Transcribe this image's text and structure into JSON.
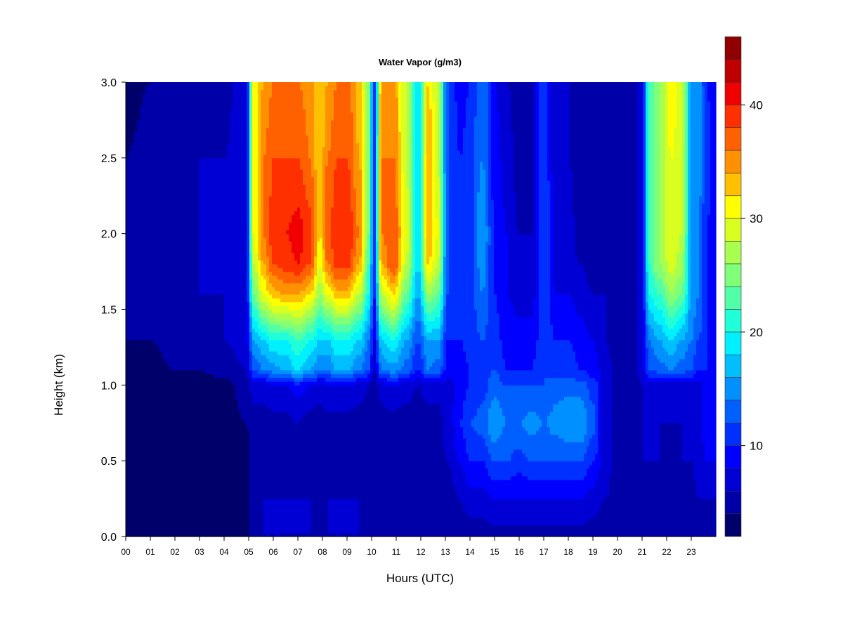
{
  "chart_data": {
    "type": "heatmap",
    "title": "Water Vapor (g/m3)",
    "xlabel": "Hours (UTC)",
    "ylabel": "Height (km)",
    "xlim": [
      0,
      24
    ],
    "ylim": [
      0.0,
      3.0
    ],
    "x_ticks": [
      "00",
      "01",
      "02",
      "03",
      "04",
      "05",
      "06",
      "07",
      "08",
      "09",
      "10",
      "11",
      "12",
      "13",
      "14",
      "15",
      "16",
      "17",
      "18",
      "19",
      "20",
      "21",
      "22",
      "23"
    ],
    "y_ticks": [
      "0.0",
      "0.5",
      "1.0",
      "1.5",
      "2.0",
      "2.5",
      "3.0"
    ],
    "colorbar": {
      "min": 2,
      "max": 42,
      "step": 2,
      "ticks": [
        "10",
        "20",
        "30",
        "40"
      ],
      "tick_values": [
        10,
        20,
        30,
        40
      ],
      "colors": [
        "#00006B",
        "#0000A8",
        "#0000D4",
        "#0000FF",
        "#0030FF",
        "#0060FF",
        "#0090FF",
        "#00BFFF",
        "#00F0FF",
        "#20FFD8",
        "#50FFA8",
        "#80FF78",
        "#A8FF50",
        "#D8FF20",
        "#FFFF00",
        "#FFC000",
        "#FF9000",
        "#FF6000",
        "#FF3000",
        "#F00000",
        "#C00000",
        "#900000"
      ]
    },
    "height_km": [
      0.0,
      0.25,
      0.5,
      0.75,
      1.0,
      1.1,
      1.3,
      1.6,
      1.8,
      2.0,
      2.5,
      3.0
    ],
    "columns": [
      {
        "hour": 0.0,
        "values": [
          2,
          2,
          2,
          2,
          2,
          3,
          4,
          4,
          4,
          4,
          4,
          3
        ]
      },
      {
        "hour": 1.0,
        "values": [
          2,
          2,
          2,
          2,
          3,
          3,
          4,
          5,
          5,
          5,
          5,
          4
        ]
      },
      {
        "hour": 2.0,
        "values": [
          2,
          2,
          2,
          2,
          3,
          4,
          5,
          5,
          5,
          5,
          5,
          4
        ]
      },
      {
        "hour": 3.0,
        "values": [
          2,
          2,
          2,
          3,
          3,
          4,
          5,
          6,
          6,
          6,
          6,
          5
        ]
      },
      {
        "hour": 4.0,
        "values": [
          2,
          2,
          3,
          3,
          3,
          5,
          6,
          6,
          6,
          6,
          6,
          5
        ]
      },
      {
        "hour": 4.9,
        "values": [
          3,
          3,
          3,
          4,
          5,
          6,
          7,
          8,
          8,
          8,
          8,
          8
        ]
      },
      {
        "hour": 5.2,
        "values": [
          5,
          6,
          5,
          5,
          7,
          12,
          16,
          24,
          28,
          30,
          30,
          30
        ]
      },
      {
        "hour": 5.6,
        "values": [
          6,
          6,
          5,
          5,
          7,
          14,
          18,
          30,
          34,
          36,
          36,
          34
        ]
      },
      {
        "hour": 6.0,
        "values": [
          6,
          6,
          5,
          5,
          8,
          15,
          20,
          33,
          38,
          39,
          38,
          36
        ]
      },
      {
        "hour": 6.5,
        "values": [
          6,
          6,
          5,
          5,
          8,
          16,
          20,
          34,
          39,
          40,
          38,
          36
        ]
      },
      {
        "hour": 7.0,
        "values": [
          6,
          6,
          5,
          6,
          9,
          18,
          22,
          34,
          40,
          41,
          38,
          36
        ]
      },
      {
        "hour": 7.5,
        "values": [
          6,
          6,
          5,
          5,
          8,
          16,
          20,
          32,
          38,
          39,
          36,
          35
        ]
      },
      {
        "hour": 7.9,
        "values": [
          5,
          6,
          5,
          5,
          7,
          14,
          18,
          26,
          30,
          32,
          32,
          32
        ]
      },
      {
        "hour": 8.2,
        "values": [
          6,
          6,
          5,
          5,
          8,
          14,
          18,
          30,
          36,
          37,
          36,
          34
        ]
      },
      {
        "hour": 8.6,
        "values": [
          6,
          6,
          5,
          5,
          8,
          16,
          20,
          33,
          39,
          40,
          38,
          36
        ]
      },
      {
        "hour": 9.0,
        "values": [
          6,
          6,
          5,
          5,
          8,
          16,
          20,
          33,
          39,
          40,
          38,
          37
        ]
      },
      {
        "hour": 9.5,
        "values": [
          6,
          6,
          5,
          5,
          7,
          14,
          18,
          28,
          34,
          36,
          34,
          33
        ]
      },
      {
        "hour": 9.9,
        "values": [
          5,
          5,
          5,
          5,
          6,
          12,
          14,
          20,
          22,
          24,
          24,
          24
        ]
      },
      {
        "hour": 10.1,
        "values": [
          4,
          4,
          4,
          4,
          5,
          6,
          8,
          10,
          10,
          10,
          10,
          10
        ]
      },
      {
        "hour": 10.4,
        "values": [
          5,
          5,
          5,
          5,
          7,
          14,
          18,
          28,
          34,
          36,
          36,
          34
        ]
      },
      {
        "hour": 10.9,
        "values": [
          5,
          5,
          5,
          5,
          8,
          15,
          20,
          32,
          38,
          38,
          36,
          35
        ]
      },
      {
        "hour": 11.4,
        "values": [
          5,
          5,
          5,
          5,
          7,
          13,
          16,
          24,
          28,
          30,
          28,
          28
        ]
      },
      {
        "hour": 11.9,
        "values": [
          5,
          5,
          5,
          5,
          6,
          10,
          12,
          16,
          18,
          18,
          18,
          18
        ]
      },
      {
        "hour": 12.3,
        "values": [
          5,
          5,
          5,
          5,
          7,
          14,
          16,
          26,
          32,
          34,
          34,
          32
        ]
      },
      {
        "hour": 12.7,
        "values": [
          5,
          5,
          5,
          5,
          7,
          13,
          16,
          24,
          28,
          30,
          28,
          28
        ]
      },
      {
        "hour": 13.1,
        "values": [
          5,
          5,
          6,
          7,
          7,
          9,
          10,
          12,
          12,
          12,
          12,
          12
        ]
      },
      {
        "hour": 13.6,
        "values": [
          5,
          6,
          8,
          10,
          9,
          9,
          10,
          10,
          10,
          10,
          10,
          9
        ]
      },
      {
        "hour": 14.0,
        "values": [
          5,
          7,
          10,
          12,
          10,
          10,
          11,
          11,
          11,
          11,
          11,
          10
        ]
      },
      {
        "hour": 14.5,
        "values": [
          5,
          7,
          10,
          13,
          11,
          11,
          12,
          14,
          15,
          16,
          14,
          14
        ]
      },
      {
        "hour": 15.0,
        "values": [
          5,
          8,
          12,
          16,
          13,
          12,
          11,
          10,
          10,
          10,
          9,
          8
        ]
      },
      {
        "hour": 15.5,
        "values": [
          5,
          8,
          12,
          14,
          12,
          10,
          9,
          8,
          8,
          8,
          7,
          6
        ]
      },
      {
        "hour": 16.0,
        "values": [
          5,
          8,
          11,
          14,
          12,
          10,
          9,
          7,
          7,
          6,
          5,
          5
        ]
      },
      {
        "hour": 16.5,
        "values": [
          5,
          8,
          12,
          15,
          12,
          10,
          9,
          7,
          7,
          6,
          5,
          5
        ]
      },
      {
        "hour": 17.0,
        "values": [
          5,
          8,
          12,
          14,
          12,
          12,
          11,
          12,
          12,
          12,
          12,
          12
        ]
      },
      {
        "hour": 17.5,
        "values": [
          5,
          8,
          12,
          15,
          13,
          11,
          10,
          8,
          7,
          7,
          6,
          6
        ]
      },
      {
        "hour": 18.0,
        "values": [
          5,
          8,
          12,
          16,
          13,
          11,
          10,
          8,
          7,
          7,
          6,
          6
        ]
      },
      {
        "hour": 18.5,
        "values": [
          5,
          8,
          12,
          16,
          13,
          10,
          9,
          7,
          6,
          5,
          5,
          5
        ]
      },
      {
        "hour": 19.0,
        "values": [
          5,
          7,
          10,
          13,
          11,
          9,
          8,
          6,
          5,
          5,
          4,
          4
        ]
      },
      {
        "hour": 19.5,
        "values": [
          5,
          6,
          7,
          7,
          7,
          7,
          6,
          6,
          5,
          5,
          5,
          5
        ]
      },
      {
        "hour": 20.0,
        "values": [
          4,
          5,
          5,
          5,
          5,
          5,
          5,
          5,
          5,
          5,
          5,
          5
        ]
      },
      {
        "hour": 20.6,
        "values": [
          4,
          5,
          5,
          5,
          5,
          5,
          5,
          5,
          5,
          5,
          4,
          4
        ]
      },
      {
        "hour": 21.0,
        "values": [
          5,
          5,
          6,
          6,
          6,
          7,
          8,
          8,
          8,
          8,
          8,
          8
        ]
      },
      {
        "hour": 21.3,
        "values": [
          5,
          5,
          6,
          6,
          7,
          12,
          14,
          20,
          22,
          22,
          22,
          22
        ]
      },
      {
        "hour": 21.7,
        "values": [
          5,
          5,
          6,
          6,
          7,
          13,
          16,
          22,
          26,
          26,
          26,
          26
        ]
      },
      {
        "hour": 22.2,
        "values": [
          5,
          5,
          5,
          6,
          7,
          14,
          18,
          26,
          29,
          30,
          30,
          32
        ]
      },
      {
        "hour": 22.6,
        "values": [
          5,
          5,
          6,
          6,
          7,
          13,
          16,
          24,
          27,
          28,
          28,
          28
        ]
      },
      {
        "hour": 23.0,
        "values": [
          5,
          5,
          6,
          6,
          7,
          12,
          14,
          16,
          16,
          16,
          16,
          16
        ]
      },
      {
        "hour": 23.3,
        "values": [
          5,
          6,
          7,
          7,
          7,
          10,
          12,
          14,
          14,
          14,
          15,
          16
        ]
      },
      {
        "hour": 23.6,
        "values": [
          5,
          6,
          8,
          9,
          9,
          10,
          10,
          10,
          10,
          10,
          12,
          10
        ]
      },
      {
        "hour": 23.9,
        "values": [
          5,
          6,
          8,
          9,
          9,
          9,
          9,
          9,
          9,
          9,
          9,
          9
        ]
      }
    ]
  }
}
